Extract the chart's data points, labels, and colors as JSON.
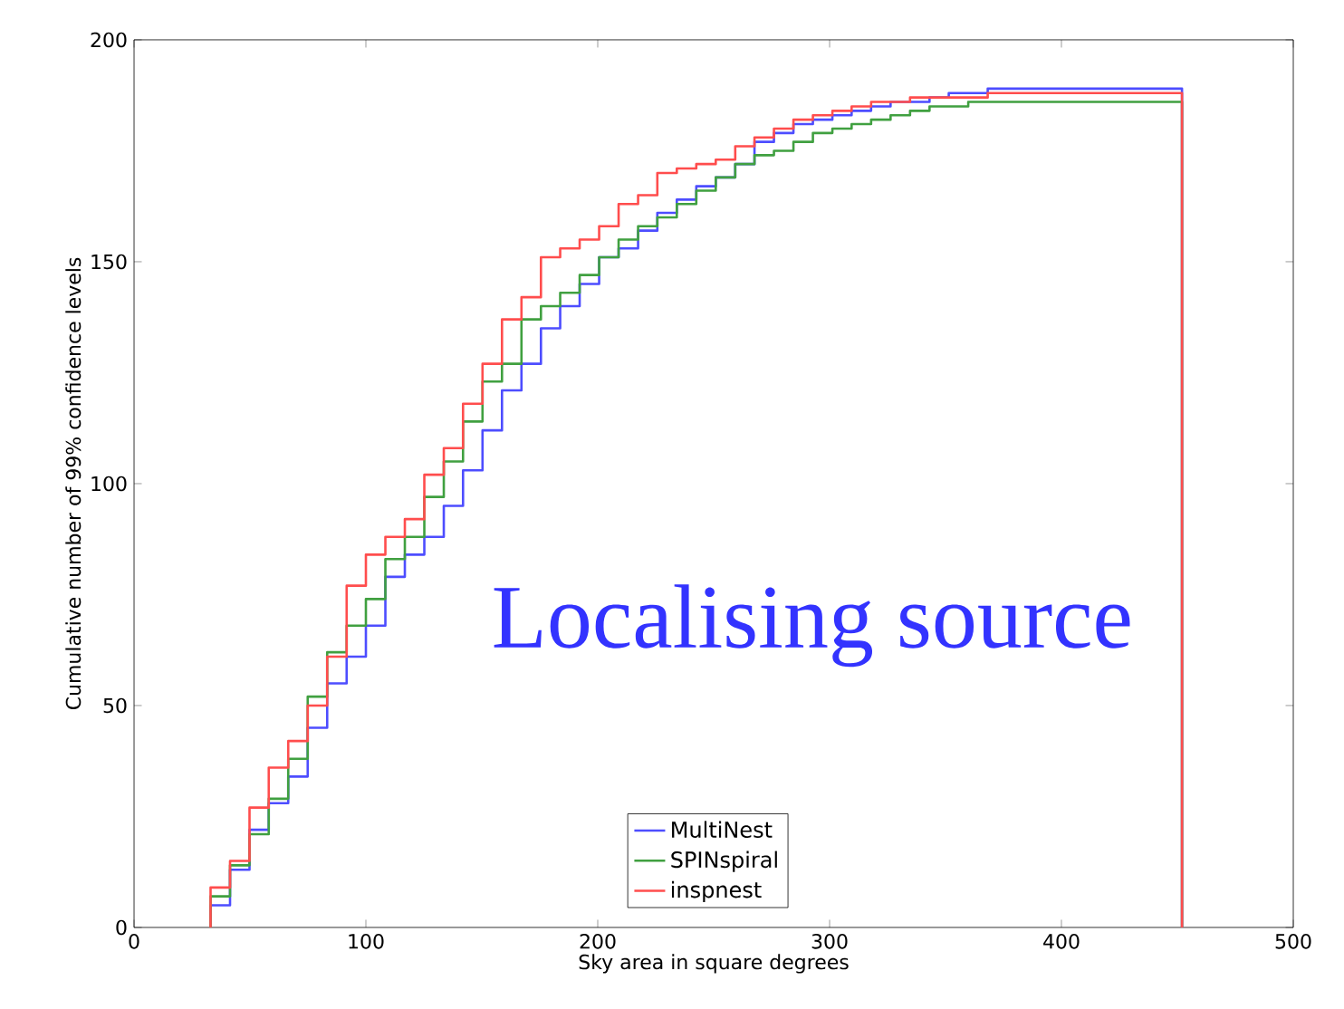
{
  "chart_data": {
    "type": "histogram",
    "xlabel": "Sky area in square degrees",
    "ylabel": "Cumulative number of 99% confidence levels",
    "annotations": [
      "Localising source"
    ],
    "bins": [
      33,
      41.4,
      49.8,
      58.1,
      66.5,
      74.9,
      83.3,
      91.7,
      100,
      108.4,
      116.8,
      125.2,
      133.6,
      141.9,
      150.3,
      158.7,
      167.1,
      175.5,
      183.8,
      192.2,
      200.6,
      209,
      217.4,
      225.7,
      234.1,
      242.5,
      250.9,
      259.3,
      267.6,
      276,
      284.4,
      292.8,
      301.2,
      309.5,
      317.9,
      326.3,
      334.7,
      343.1,
      351.4,
      359.8,
      368.2,
      376.6,
      385,
      393.3,
      401.7,
      410.1,
      418.5,
      426.9,
      435.2,
      443.6,
      452
    ],
    "series": [
      {
        "name": "MultiNest",
        "color": "#4d4dff",
        "values": [
          5,
          13,
          22,
          28,
          34,
          45,
          55,
          61,
          68,
          79,
          84,
          88,
          95,
          103,
          112,
          121,
          127,
          135,
          140,
          145,
          151,
          153,
          157,
          161,
          164,
          167,
          169,
          172,
          177,
          179,
          181,
          182,
          183,
          184,
          185,
          186,
          186,
          187,
          188,
          188,
          189,
          189,
          189,
          189,
          189,
          189,
          189,
          189,
          189,
          189
        ]
      },
      {
        "name": "SPINspiral",
        "color": "#40a040",
        "values": [
          7,
          14,
          21,
          29,
          38,
          52,
          62,
          68,
          74,
          83,
          88,
          97,
          105,
          114,
          123,
          127,
          137,
          140,
          143,
          147,
          151,
          155,
          158,
          160,
          163,
          166,
          169,
          172,
          174,
          175,
          177,
          179,
          180,
          181,
          182,
          183,
          184,
          185,
          185,
          186,
          186,
          186,
          186,
          186,
          186,
          186,
          186,
          186,
          186,
          186
        ]
      },
      {
        "name": "inspnest",
        "color": "#ff4d4d",
        "values": [
          9,
          15,
          27,
          36,
          42,
          50,
          61,
          77,
          84,
          88,
          92,
          102,
          108,
          118,
          127,
          137,
          142,
          151,
          153,
          155,
          158,
          163,
          165,
          170,
          171,
          172,
          173,
          176,
          178,
          180,
          182,
          183,
          184,
          185,
          186,
          186,
          187,
          187,
          187,
          187,
          188,
          188,
          188,
          188,
          188,
          188,
          188,
          188,
          188,
          188
        ]
      }
    ],
    "xlim": [
      0,
      500
    ],
    "xticks": [
      0,
      100,
      200,
      300,
      400,
      500
    ],
    "ylim": [
      0,
      200
    ],
    "yticks": [
      0,
      50,
      100,
      150,
      200
    ],
    "grid": false,
    "legend": "bottom"
  }
}
